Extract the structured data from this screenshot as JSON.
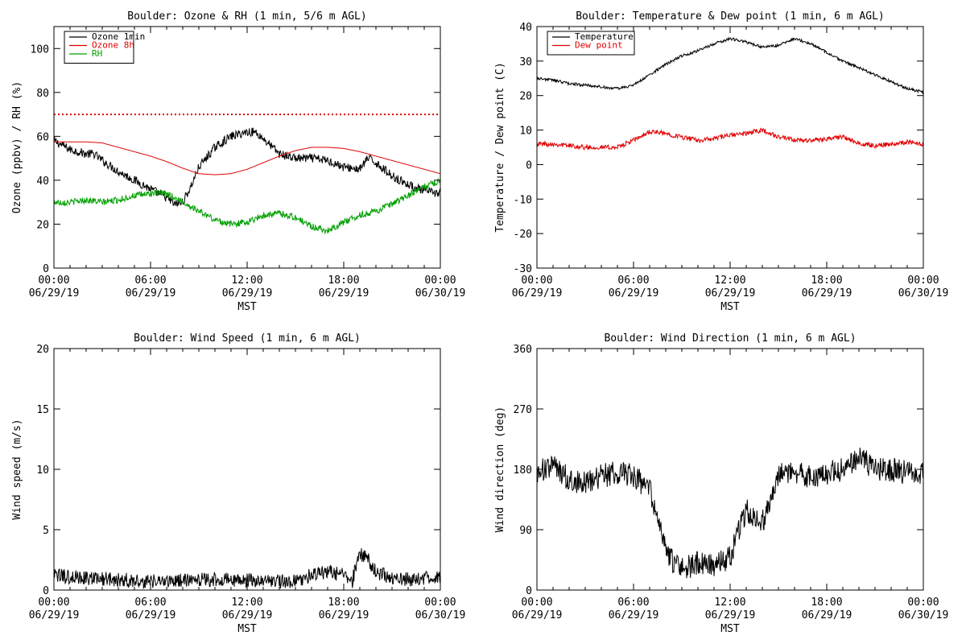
{
  "chart_data": [
    {
      "type": "line",
      "title": "Boulder: Ozone & RH (1 min, 5/6 m AGL)",
      "ylabel": "Ozone (ppbv) / RH (%)",
      "xlabel": "MST",
      "xlim": [
        0,
        24
      ],
      "ylim": [
        0,
        110
      ],
      "yticks": [
        0,
        20,
        40,
        60,
        80,
        100
      ],
      "xticks": [
        {
          "time": "00:00",
          "date": "06/29/19"
        },
        {
          "time": "06:00",
          "date": "06/29/19"
        },
        {
          "time": "12:00",
          "date": "06/29/19"
        },
        {
          "time": "18:00",
          "date": "06/29/19"
        },
        {
          "time": "00:00",
          "date": "06/30/19"
        }
      ],
      "legend_position": "top-left",
      "reference_line": {
        "y": 70,
        "style": "dotted",
        "color": "#e00000"
      },
      "series": [
        {
          "name": "Ozone 1min",
          "color": "#000000",
          "noise": 2.0,
          "x": [
            0,
            0.5,
            1,
            2,
            2.5,
            3,
            4,
            5,
            6,
            6.5,
            7,
            7.5,
            8,
            8.5,
            9,
            10,
            11,
            12,
            12.5,
            13,
            14,
            14.5,
            15,
            16,
            17,
            18,
            19,
            19.5,
            20,
            21,
            22,
            23,
            24
          ],
          "y": [
            58,
            56,
            54,
            52,
            52,
            49,
            44,
            40,
            36,
            34,
            32,
            29,
            30,
            37,
            46,
            55,
            60,
            62,
            62,
            59,
            52,
            51,
            50,
            50,
            49,
            46,
            45,
            50,
            48,
            42,
            38,
            35,
            34
          ]
        },
        {
          "name": "Ozone 8h",
          "color": "#e00000",
          "noise": 0,
          "x": [
            0,
            1,
            2,
            3,
            4,
            5,
            6,
            7,
            8,
            9,
            10,
            11,
            12,
            13,
            14,
            15,
            16,
            17,
            18,
            19,
            20,
            21,
            22,
            23,
            24
          ],
          "y": [
            57.5,
            57.5,
            57.5,
            57,
            55,
            53,
            51,
            48.5,
            45.5,
            43,
            42.5,
            43,
            45,
            48,
            51,
            53.5,
            55,
            55,
            54.5,
            53,
            51,
            49,
            47,
            45,
            43
          ]
        },
        {
          "name": "RH",
          "color": "#00a000",
          "noise": 1.5,
          "x": [
            0,
            1,
            2,
            3,
            4,
            5,
            6,
            7,
            8,
            9,
            10,
            11,
            12,
            13,
            14,
            15,
            16,
            17,
            18,
            19,
            20,
            21,
            22,
            23,
            24
          ],
          "y": [
            30,
            30,
            31,
            30,
            31,
            33,
            34,
            34,
            30,
            26,
            22,
            20,
            21,
            24,
            25,
            23,
            19,
            17,
            21,
            24,
            26,
            29,
            33,
            37,
            40
          ]
        }
      ]
    },
    {
      "type": "line",
      "title": "Boulder: Temperature & Dew point (1 min, 6 m AGL)",
      "ylabel": "Temperature / Dew point (C)",
      "xlabel": "MST",
      "xlim": [
        0,
        24
      ],
      "ylim": [
        -30,
        40
      ],
      "yticks": [
        -30,
        -20,
        -10,
        0,
        10,
        20,
        30,
        40
      ],
      "xticks": [
        {
          "time": "00:00",
          "date": "06/29/19"
        },
        {
          "time": "06:00",
          "date": "06/29/19"
        },
        {
          "time": "12:00",
          "date": "06/29/19"
        },
        {
          "time": "18:00",
          "date": "06/29/19"
        },
        {
          "time": "00:00",
          "date": "06/30/19"
        }
      ],
      "legend_position": "top-left",
      "series": [
        {
          "name": "Temperature",
          "color": "#000000",
          "noise": 0.4,
          "x": [
            0,
            1,
            2,
            3,
            4,
            5,
            6,
            7,
            8,
            9,
            10,
            11,
            12,
            13,
            14,
            15,
            16,
            17,
            18,
            19,
            20,
            21,
            22,
            23,
            24
          ],
          "y": [
            25,
            24.5,
            23.5,
            23,
            22.5,
            22,
            23,
            26,
            29,
            31.5,
            33,
            35,
            36.5,
            35.5,
            34,
            34.5,
            36.5,
            35,
            32.5,
            30,
            28,
            26,
            24,
            22,
            21
          ]
        },
        {
          "name": "Dew point",
          "color": "#e00000",
          "noise": 0.7,
          "x": [
            0,
            1,
            2,
            3,
            4,
            5,
            6,
            7,
            8,
            9,
            10,
            11,
            12,
            13,
            14,
            15,
            16,
            17,
            18,
            19,
            20,
            21,
            22,
            23,
            24
          ],
          "y": [
            6,
            6,
            5.5,
            5,
            5,
            5,
            7,
            9.5,
            9,
            8,
            7,
            7.5,
            8.5,
            9,
            10,
            8,
            7,
            7,
            7.5,
            8,
            6,
            5.5,
            6,
            6.5,
            6
          ]
        }
      ]
    },
    {
      "type": "line",
      "title": "Boulder: Wind Speed (1 min, 6 m AGL)",
      "ylabel": "Wind speed (m/s)",
      "xlabel": "MST",
      "xlim": [
        0,
        24
      ],
      "ylim": [
        0,
        20
      ],
      "yticks": [
        0,
        5,
        10,
        15,
        20
      ],
      "xticks": [
        {
          "time": "00:00",
          "date": "06/29/19"
        },
        {
          "time": "06:00",
          "date": "06/29/19"
        },
        {
          "time": "12:00",
          "date": "06/29/19"
        },
        {
          "time": "18:00",
          "date": "06/29/19"
        },
        {
          "time": "00:00",
          "date": "06/30/19"
        }
      ],
      "series": [
        {
          "color": "#000000",
          "noise": 0.6,
          "clip_min": 0,
          "x": [
            0,
            2,
            4,
            6,
            8,
            10,
            12,
            14,
            15,
            16,
            17,
            18,
            18.5,
            19,
            19.5,
            20,
            21,
            22,
            23,
            24
          ],
          "y": [
            1.2,
            1,
            0.9,
            0.7,
            0.8,
            0.9,
            0.8,
            0.7,
            0.8,
            1.2,
            1.5,
            1.2,
            0.6,
            3,
            2.5,
            1.5,
            1,
            0.9,
            1,
            1.1
          ]
        }
      ]
    },
    {
      "type": "line",
      "title": "Boulder: Wind Direction (1 min, 6 m AGL)",
      "ylabel": "Wind direction (deg)",
      "xlabel": "MST",
      "xlim": [
        0,
        24
      ],
      "ylim": [
        0,
        360
      ],
      "yticks": [
        0,
        90,
        180,
        270,
        360
      ],
      "xticks": [
        {
          "time": "00:00",
          "date": "06/29/19"
        },
        {
          "time": "06:00",
          "date": "06/29/19"
        },
        {
          "time": "12:00",
          "date": "06/29/19"
        },
        {
          "time": "18:00",
          "date": "06/29/19"
        },
        {
          "time": "00:00",
          "date": "06/30/19"
        }
      ],
      "series": [
        {
          "color": "#000000",
          "noise": 18,
          "clip_min": 0,
          "clip_max": 360,
          "x": [
            0,
            1,
            2,
            3,
            4,
            5,
            6,
            7,
            8,
            8.5,
            9,
            10,
            11,
            12,
            13,
            14,
            15,
            16,
            17,
            18,
            19,
            20,
            21,
            22,
            23,
            24
          ],
          "y": [
            175,
            185,
            165,
            160,
            170,
            175,
            170,
            150,
            60,
            40,
            30,
            40,
            35,
            50,
            120,
            100,
            175,
            175,
            170,
            175,
            180,
            200,
            180,
            180,
            175,
            175
          ]
        }
      ]
    }
  ]
}
